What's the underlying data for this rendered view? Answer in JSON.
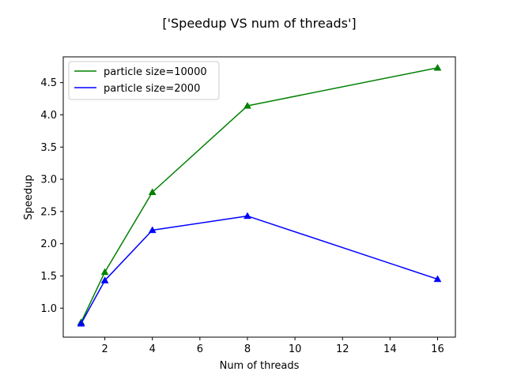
{
  "chart_data": {
    "type": "line",
    "title": "['Speedup VS num of threads']",
    "xlabel": "Num of threads",
    "ylabel": "Speedup",
    "xlim": [
      0.25,
      16.75
    ],
    "ylim": [
      0.55,
      4.9
    ],
    "xticks": [
      2,
      4,
      6,
      8,
      10,
      12,
      14,
      16
    ],
    "xtick_labels": [
      "2",
      "4",
      "6",
      "8",
      "10",
      "12",
      "14",
      "16"
    ],
    "yticks": [
      1.0,
      1.5,
      2.0,
      2.5,
      3.0,
      3.5,
      4.0,
      4.5
    ],
    "ytick_labels": [
      "1.0",
      "1.5",
      "2.0",
      "2.5",
      "3.0",
      "3.5",
      "4.0",
      "4.5"
    ],
    "grid": false,
    "legend": "top-left",
    "marker": "triangle",
    "x": [
      1,
      2,
      4,
      8,
      16
    ],
    "series": [
      {
        "name": "particle size=10000",
        "color": "#008000",
        "values": [
          0.78,
          1.56,
          2.8,
          4.14,
          4.73
        ]
      },
      {
        "name": "particle size=2000",
        "color": "#0000ff",
        "values": [
          0.76,
          1.43,
          2.21,
          2.43,
          1.45
        ]
      }
    ]
  }
}
